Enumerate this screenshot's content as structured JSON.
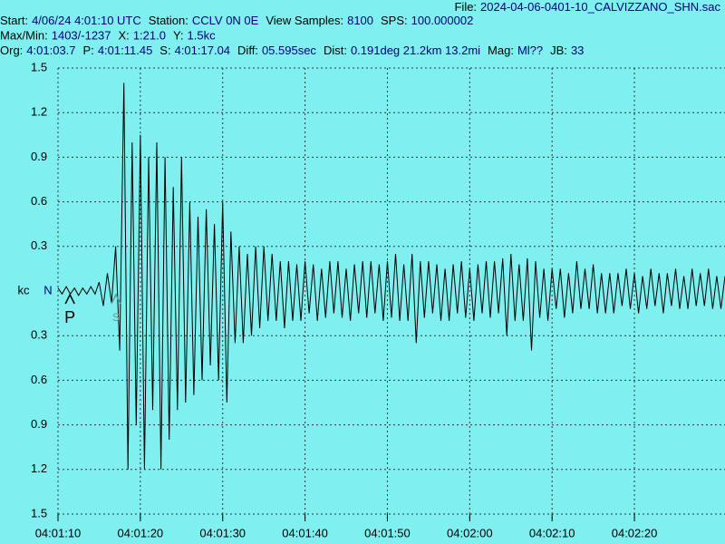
{
  "header": {
    "file": [
      {
        "label": "File:",
        "value": "2024-04-06-0401-10_CALVIZZANO_SHN.sac"
      }
    ],
    "lines": [
      [
        {
          "label": "Start:",
          "value": "4/06/24  4:01:10 UTC"
        },
        {
          "label": "Station:",
          "value": "CCLV 0N 0E"
        },
        {
          "label": "View Samples:",
          "value": "8100"
        },
        {
          "label": "SPS:",
          "value": "100.000002"
        }
      ],
      [
        {
          "label": "Max/Min:",
          "value": "1403/-1237"
        },
        {
          "label": "X:",
          "value": "1:21.0"
        },
        {
          "label": "Y:",
          "value": "1.5kc"
        }
      ],
      [
        {
          "label": "Org:",
          "value": "4:01:03.7"
        },
        {
          "label": "P:",
          "value": "4:01:11.45"
        },
        {
          "label": "S:",
          "value": "4:01:17.04"
        },
        {
          "label": "Diff:",
          "value": "05.595sec"
        },
        {
          "label": "Dist:",
          "value": "0.191deg 21.2km 13.2mi"
        },
        {
          "label": "Mag:",
          "value": "Ml??"
        },
        {
          "label": "JB:",
          "value": "33"
        }
      ]
    ]
  },
  "chart_data": {
    "type": "line",
    "ylabel": "kc",
    "channel": "N",
    "xlim": [
      0,
      81
    ],
    "ylim": [
      -1.5,
      1.5
    ],
    "grid": true,
    "xticks": [
      {
        "value": 0,
        "label": "04:01:10"
      },
      {
        "value": 10,
        "label": "04:01:20"
      },
      {
        "value": 20,
        "label": "04:01:30"
      },
      {
        "value": 30,
        "label": "04:01:40"
      },
      {
        "value": 40,
        "label": "04:01:50"
      },
      {
        "value": 50,
        "label": "04:02:00"
      },
      {
        "value": 60,
        "label": "04:02:10"
      },
      {
        "value": 70,
        "label": "04:02:20"
      }
    ],
    "yticks": [
      {
        "value": 1.5,
        "label": "1.5"
      },
      {
        "value": 1.2,
        "label": "1.2"
      },
      {
        "value": 0.9,
        "label": "0.9"
      },
      {
        "value": 0.6,
        "label": "0.6"
      },
      {
        "value": 0.3,
        "label": "0.3"
      },
      {
        "value": -0.3,
        "label": "0.3"
      },
      {
        "value": -0.6,
        "label": "0.6"
      },
      {
        "value": -0.9,
        "label": "0.9"
      },
      {
        "value": -1.2,
        "label": "1.2"
      },
      {
        "value": -1.5,
        "label": "1.5"
      }
    ],
    "picks": [
      {
        "label": "P",
        "x": 1.45
      },
      {
        "label": "S",
        "x": 7.04
      }
    ],
    "x": [
      0,
      0.5,
      1,
      1.5,
      2,
      2.5,
      3,
      3.5,
      4,
      4.5,
      5,
      5.5,
      6,
      6.5,
      7,
      7.5,
      8,
      8.5,
      9,
      9.5,
      10,
      10.5,
      11,
      11.5,
      12,
      12.5,
      13,
      13.5,
      14,
      14.5,
      15,
      15.5,
      16,
      16.5,
      17,
      17.5,
      18,
      18.5,
      19,
      19.5,
      20,
      20.5,
      21,
      21.5,
      22,
      22.5,
      23,
      23.5,
      24,
      24.5,
      25,
      25.5,
      26,
      26.5,
      27,
      27.5,
      28,
      28.5,
      29,
      29.5,
      30,
      30.5,
      31,
      31.5,
      32,
      32.5,
      33,
      33.5,
      34,
      34.5,
      35,
      35.5,
      36,
      36.5,
      37,
      37.5,
      38,
      38.5,
      39,
      39.5,
      40,
      40.5,
      41,
      41.5,
      42,
      42.5,
      43,
      43.5,
      44,
      44.5,
      45,
      45.5,
      46,
      46.5,
      47,
      47.5,
      48,
      48.5,
      49,
      49.5,
      50,
      50.5,
      51,
      51.5,
      52,
      52.5,
      53,
      53.5,
      54,
      54.5,
      55,
      55.5,
      56,
      56.5,
      57,
      57.5,
      58,
      58.5,
      59,
      59.5,
      60,
      60.5,
      61,
      61.5,
      62,
      62.5,
      63,
      63.5,
      64,
      64.5,
      65,
      65.5,
      66,
      66.5,
      67,
      67.5,
      68,
      68.5,
      69,
      69.5,
      70,
      70.5,
      71,
      71.5,
      72,
      72.5,
      73,
      73.5,
      74,
      74.5,
      75,
      75.5,
      76,
      76.5,
      77,
      77.5,
      78,
      78.5,
      79,
      79.5,
      80,
      80.5,
      81
    ],
    "series": [
      {
        "color": "#000000",
        "values": [
          0.02,
          -0.02,
          0.03,
          -0.02,
          0.02,
          -0.03,
          0.02,
          -0.02,
          0.03,
          -0.02,
          0.06,
          -0.1,
          0.12,
          -0.08,
          0.3,
          -0.4,
          1.4,
          -1.2,
          1.0,
          -0.9,
          1.05,
          -1.2,
          0.9,
          -0.8,
          1.0,
          -1.2,
          0.9,
          -1.0,
          0.7,
          -0.8,
          0.9,
          -0.75,
          0.6,
          -0.7,
          0.5,
          -0.6,
          0.55,
          -0.5,
          0.45,
          -0.6,
          0.6,
          -0.75,
          0.4,
          -0.35,
          0.3,
          -0.35,
          0.25,
          -0.3,
          0.3,
          -0.25,
          0.3,
          -0.2,
          0.25,
          -0.2,
          0.2,
          -0.25,
          0.2,
          -0.2,
          0.18,
          -0.2,
          0.2,
          -0.15,
          0.18,
          -0.2,
          0.15,
          -0.18,
          0.2,
          -0.15,
          0.2,
          -0.18,
          0.15,
          -0.2,
          0.18,
          -0.15,
          0.2,
          -0.18,
          0.2,
          -0.15,
          0.18,
          -0.2,
          0.2,
          -0.18,
          0.25,
          -0.2,
          0.18,
          -0.2,
          0.25,
          -0.35,
          0.2,
          -0.18,
          0.2,
          -0.15,
          0.18,
          -0.2,
          0.15,
          -0.2,
          0.18,
          -0.15,
          0.2,
          -0.18,
          0.15,
          -0.2,
          0.18,
          -0.15,
          0.2,
          -0.18,
          0.2,
          -0.15,
          0.22,
          -0.3,
          0.25,
          -0.2,
          0.18,
          -0.2,
          0.22,
          -0.4,
          0.2,
          -0.18,
          0.15,
          -0.2,
          0.15,
          -0.12,
          0.15,
          -0.18,
          0.12,
          -0.15,
          0.2,
          -0.12,
          0.15,
          -0.12,
          0.18,
          -0.15,
          0.12,
          -0.15,
          0.12,
          -0.15,
          0.12,
          -0.1,
          0.15,
          -0.12,
          0.12,
          -0.15,
          0.1,
          -0.12,
          0.15,
          -0.1,
          0.12,
          -0.15,
          0.12,
          -0.1,
          0.15,
          -0.12,
          0.1,
          -0.12,
          0.15,
          -0.1,
          0.12,
          -0.1,
          0.15,
          -0.12,
          0.1,
          -0.12,
          0.1
        ]
      }
    ]
  }
}
